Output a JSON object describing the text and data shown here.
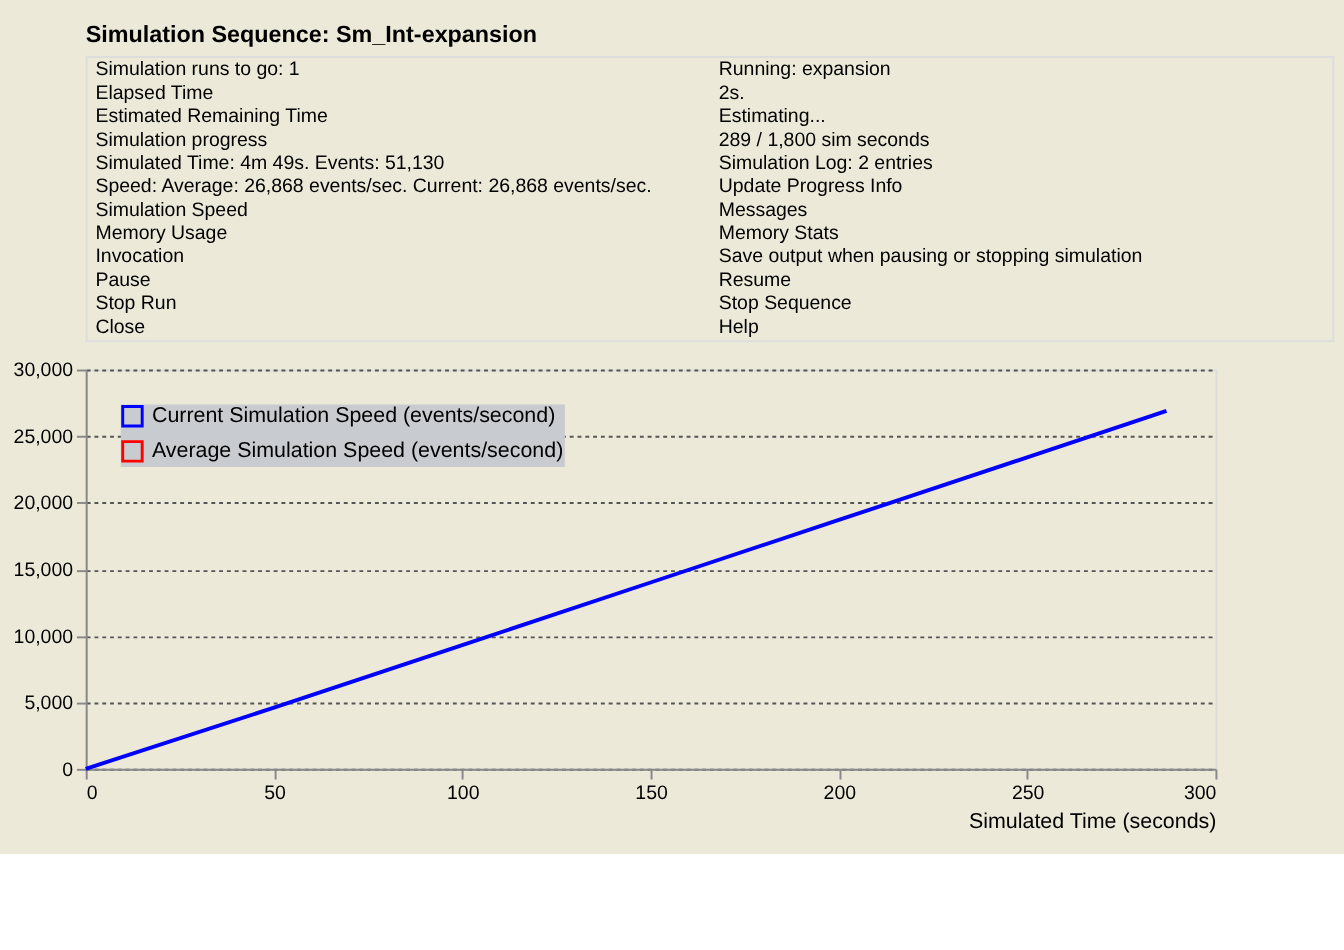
{
  "chart_data": {
    "type": "line",
    "title": "Simulation Sequence: Sm_Int-expansion",
    "xlabel": "Simulated Time (seconds)",
    "x": [
      0,
      50,
      100,
      150,
      200,
      250,
      287
    ],
    "series": [
      {
        "name": "Current Simulation Speed (events/second)",
        "color": "#0000ff",
        "values": [
          0,
          4600,
          9300,
          14000,
          18700,
          23400,
          26900
        ]
      },
      {
        "name": "Average Simulation Speed (events/second)",
        "color": "#ff0000",
        "values": [
          null,
          null,
          null,
          null,
          null,
          null,
          null
        ]
      }
    ],
    "xlim": [
      0,
      300
    ],
    "xticks": [
      0,
      50,
      100,
      150,
      200,
      250,
      300
    ],
    "ylim": [
      0,
      30000
    ],
    "yticks": [
      {
        "value": 0,
        "label": "0"
      },
      {
        "value": 5000,
        "label": "5,000"
      },
      {
        "value": 10000,
        "label": "10,000"
      },
      {
        "value": 15000,
        "label": "15,000"
      },
      {
        "value": 20000,
        "label": "20,000"
      },
      {
        "value": 25000,
        "label": "25,000"
      },
      {
        "value": 30000,
        "label": "30,000"
      }
    ],
    "grid": "y",
    "legend": "top left",
    "marker": "none",
    "line_style": "solid",
    "annotations": [
      "Simulation runs to go: 1",
      "Running: expansion",
      "Elapsed Time",
      "2s.",
      "Estimated Remaining Time",
      "Estimating...",
      "Simulation progress",
      "289 / 1,800 sim seconds",
      "Simulated Time: 4m 49s. Events: 51,130",
      "Simulation Log: 2 entries",
      "Speed: Average: 26,868 events/sec. Current: 26,868 events/sec.",
      "Update Progress Info",
      "Simulation Speed",
      "Messages",
      "Memory Usage",
      "Memory Stats",
      "Invocation",
      "Save output when pausing or stopping simulation",
      "Pause",
      "Resume",
      "Stop Run",
      "Stop Sequence",
      "Close",
      "Help"
    ]
  }
}
